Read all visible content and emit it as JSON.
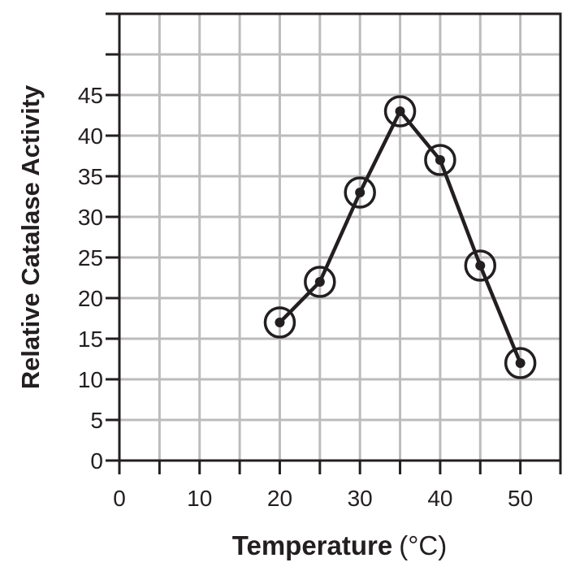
{
  "chart_data": {
    "type": "line",
    "title": "",
    "xlabel": "Temperature",
    "xlabel_unit": "(°C)",
    "ylabel": "Relative Catalase Activity",
    "xlim": [
      0,
      55
    ],
    "ylim": [
      0,
      55
    ],
    "x_ticks": [
      0,
      10,
      20,
      30,
      40,
      50
    ],
    "y_ticks": [
      0,
      5,
      10,
      15,
      20,
      25,
      30,
      35,
      40,
      45
    ],
    "grid": true,
    "grid_step": 5,
    "series": [
      {
        "name": "Catalase activity",
        "x": [
          20,
          25,
          30,
          35,
          40,
          45,
          50
        ],
        "y": [
          17,
          22,
          33,
          43,
          37,
          24,
          12
        ]
      }
    ],
    "colors": {
      "line": "#231f20",
      "grid": "#bcbcbc"
    }
  }
}
